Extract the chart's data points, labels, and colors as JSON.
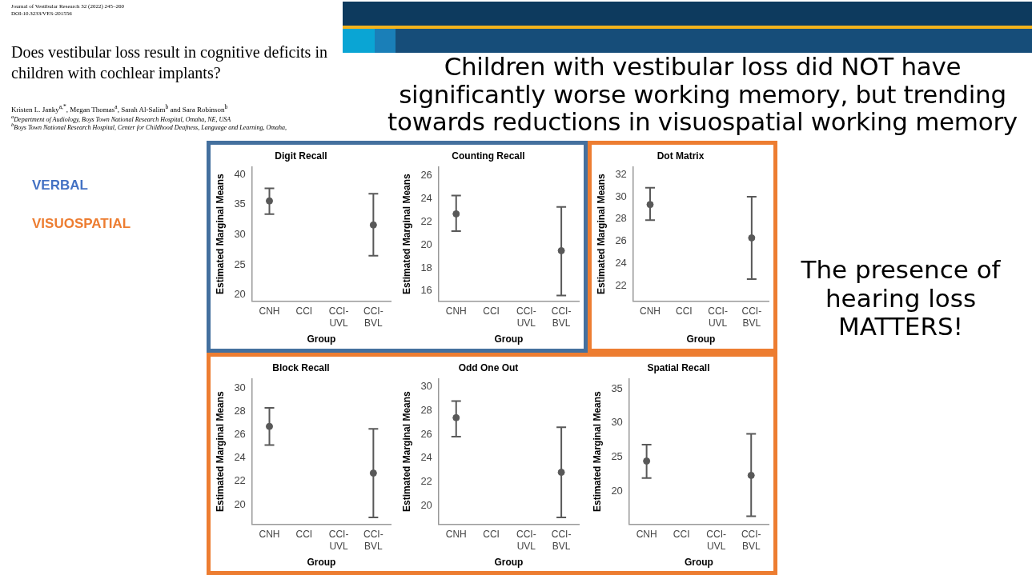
{
  "chart_data": [
    {
      "type": "other",
      "title": "Children with vestibular loss did NOT have significantly worse working memory, but trending towards reductions in visuospatial working memory",
      "annotations": [
        "Journal of Vestibular Research 32 (2022) 245–260",
        "DOI:10.3233/VES-201556",
        "Does vestibular loss result in cognitive deficits in children with cochlear implants?",
        "Kristen L. Janky$^{a,*}$, Megan Thomas$^{a}$, Sarah Al-Salim$^{b}$ and Sara Robinson$^{b}$",
        "$^{a}$Department of Audiology, Boys Town National Research Hospital, Omaha, NE, USA",
        "$^{b}$Boys Town National Research Hospital, Center for Childhood Deafness, Language and Learning, Omaha,",
        "VERBAL",
        "VISUOSPATIAL",
        "The presence of hearing loss MATTERS!"
      ]
    },
    {
      "type": "scatter",
      "title": "Digit Recall",
      "xlabel": "Group",
      "ylabel": "Estimated Marginal Means",
      "categories": [
        "CNH",
        "CCI",
        "CCI-UVL",
        "CCI-BVL"
      ],
      "marker": "circle",
      "color": "#595959",
      "values": [
        35.6,
        null,
        null,
        31.6
      ],
      "errors": [
        [
          33.4,
          37.7
        ],
        null,
        null,
        [
          26.5,
          36.8
        ]
      ],
      "ylim": [
        18.9,
        41.3
      ],
      "yticks": [
        20,
        25,
        30,
        35,
        40
      ]
    },
    {
      "type": "scatter",
      "title": "Counting Recall",
      "xlabel": "Group",
      "ylabel": "Estimated Marginal Means",
      "categories": [
        "CNH",
        "CCI",
        "CCI-UVL",
        "CCI-BVL"
      ],
      "marker": "circle",
      "color": "#595959",
      "values": [
        22.7,
        null,
        null,
        19.5
      ],
      "errors": [
        [
          21.2,
          24.3
        ],
        null,
        null,
        [
          15.6,
          23.3
        ]
      ],
      "ylim": [
        15.1,
        26.8
      ],
      "yticks": [
        16,
        18,
        20,
        22,
        24,
        26
      ]
    },
    {
      "type": "scatter",
      "title": "Dot Matrix",
      "xlabel": "Group",
      "ylabel": "Estimated Marginal Means",
      "categories": [
        "CNH",
        "CCI",
        "CCI-UVL",
        "CCI-BVL"
      ],
      "marker": "circle",
      "color": "#595959",
      "values": [
        29.3,
        null,
        null,
        26.3
      ],
      "errors": [
        [
          27.9,
          30.8
        ],
        null,
        null,
        [
          22.6,
          30.0
        ]
      ],
      "ylim": [
        20.6,
        32.7
      ],
      "yticks": [
        22,
        24,
        26,
        28,
        30,
        32
      ]
    },
    {
      "type": "scatter",
      "title": "Block Recall",
      "xlabel": "Group",
      "ylabel": "Estimated Marginal Means",
      "categories": [
        "CNH",
        "CCI",
        "CCI-UVL",
        "CCI-BVL"
      ],
      "marker": "circle",
      "color": "#595959",
      "values": [
        26.7,
        null,
        null,
        22.7
      ],
      "errors": [
        [
          25.1,
          28.3
        ],
        null,
        null,
        [
          18.9,
          26.5
        ]
      ],
      "ylim": [
        18.3,
        30.8
      ],
      "yticks": [
        20,
        22,
        24,
        26,
        28,
        30
      ]
    },
    {
      "type": "scatter",
      "title": "Odd One Out",
      "xlabel": "Group",
      "ylabel": "Estimated Marginal Means",
      "categories": [
        "CNH",
        "CCI",
        "CCI-UVL",
        "CCI-BVL"
      ],
      "marker": "circle",
      "color": "#595959",
      "values": [
        27.4,
        null,
        null,
        22.8
      ],
      "errors": [
        [
          25.8,
          28.8
        ],
        null,
        null,
        [
          19.0,
          26.6
        ]
      ],
      "ylim": [
        18.4,
        30.7
      ],
      "yticks": [
        20,
        22,
        24,
        26,
        28,
        30
      ]
    },
    {
      "type": "scatter",
      "title": "Spatial Recall",
      "xlabel": "Group",
      "ylabel": "Estimated Marginal Means",
      "categories": [
        "CNH",
        "CCI",
        "CCI-UVL",
        "CCI-BVL"
      ],
      "marker": "circle",
      "color": "#595959",
      "values": [
        24.4,
        null,
        null,
        22.3
      ],
      "errors": [
        [
          21.9,
          26.8
        ],
        null,
        null,
        [
          16.3,
          28.4
        ]
      ],
      "ylim": [
        15.1,
        36.5
      ],
      "yticks": [
        20,
        25,
        30,
        35
      ]
    }
  ]
}
